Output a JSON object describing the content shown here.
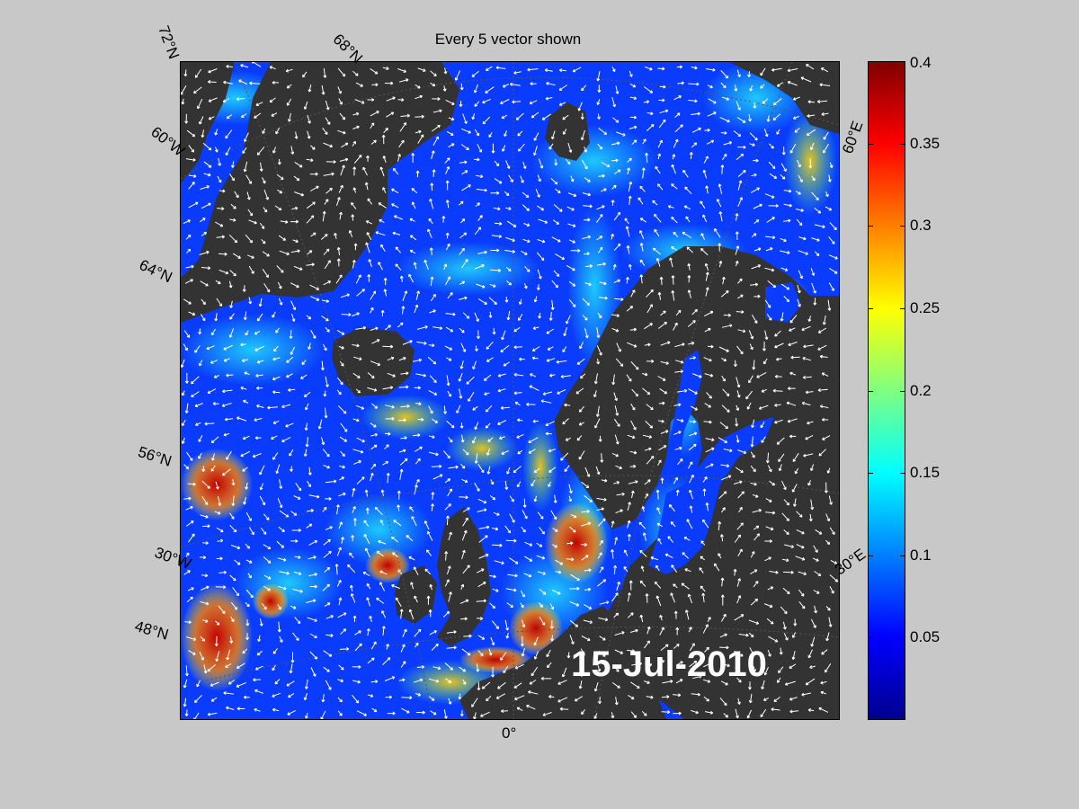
{
  "title": "Every 5 vector shown",
  "date_label": "15-Jul-2010",
  "lat_labels": [
    "72°N",
    "68°N",
    "64°N",
    "56°N",
    "48°N"
  ],
  "lon_labels": [
    "60°W",
    "30°W",
    "0°",
    "30°E",
    "60°E"
  ],
  "colorbar": {
    "min": 0,
    "max": 0.4,
    "ticks": [
      "0.4",
      "0.35",
      "0.3",
      "0.25",
      "0.2",
      "0.15",
      "0.1",
      "0.05"
    ],
    "tick_values": [
      0.4,
      0.35,
      0.3,
      0.25,
      0.2,
      0.15,
      0.1,
      0.05
    ],
    "colormap": [
      "#00008f",
      "#0000ff",
      "#0080ff",
      "#00ffff",
      "#80ff80",
      "#ffff00",
      "#ff8000",
      "#ff0000",
      "#800000"
    ]
  },
  "colors": {
    "land": "#333333",
    "ocean_base": "#0a3cff",
    "vectors": "#ffffff",
    "background": "#c8c8c8"
  }
}
